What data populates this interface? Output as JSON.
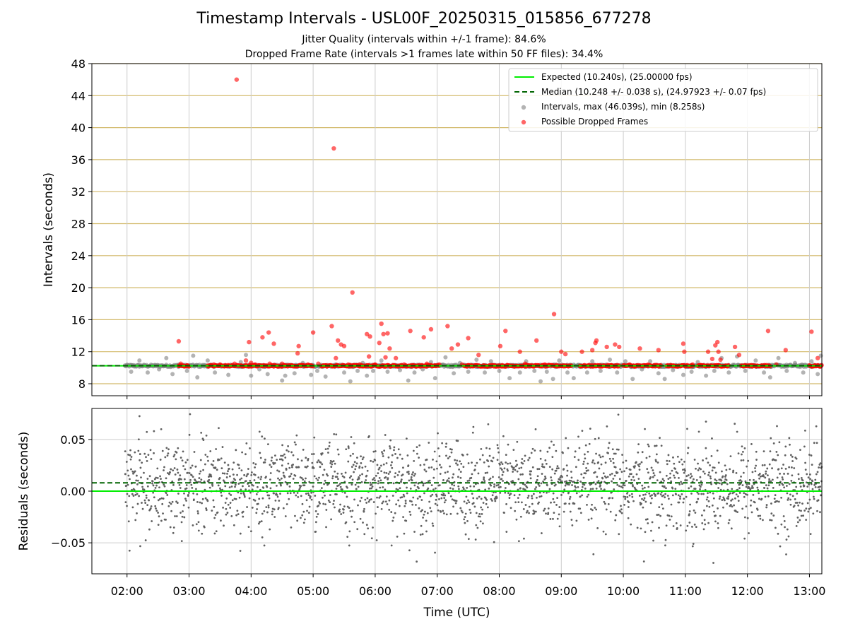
{
  "title": "Timestamp Intervals - USL00F_20250315_015856_677278",
  "subtitle1": "Jitter Quality (intervals within +/-1 frame): 84.6%",
  "subtitle2": "Dropped Frame Rate (intervals >1 frames late within 50 FF files): 34.4%",
  "chart_data": [
    {
      "type": "scatter",
      "panel": "top",
      "ylabel": "Intervals (seconds)",
      "ylim": [
        6.5,
        48
      ],
      "xlim": [
        "01:26",
        "13:12"
      ],
      "yticks": [
        8,
        12,
        16,
        20,
        24,
        28,
        32,
        36,
        40,
        44,
        48
      ],
      "grid": true,
      "legend_position": "upper right",
      "legend": [
        {
          "label": "Expected (10.240s), (25.00000 fps)",
          "kind": "solid-line",
          "color": "#00ee00"
        },
        {
          "label": "Median (10.248 +/- 0.038 s), (24.97923 +/- 0.07 fps)",
          "kind": "dashed-line",
          "color": "#006400"
        },
        {
          "label": "Intervals, max (46.039s), min (8.258s)",
          "kind": "dot",
          "color": "#808080"
        },
        {
          "label": "Possible Dropped Frames",
          "kind": "dot",
          "color": "#ff0000"
        }
      ],
      "expected": 10.24,
      "median": 10.248,
      "series": [
        {
          "name": "Intervals, max (46.039s), min (8.258s)",
          "color": "#808080",
          "points": [
            [
              "02:04",
              9.5
            ],
            [
              "02:12",
              10.9
            ],
            [
              "02:20",
              9.4
            ],
            [
              "02:31",
              9.8
            ],
            [
              "02:38",
              11.2
            ],
            [
              "02:44",
              9.2
            ],
            [
              "02:50",
              10.4
            ],
            [
              "02:58",
              9.6
            ],
            [
              "03:04",
              11.5
            ],
            [
              "03:08",
              8.8
            ],
            [
              "03:18",
              10.9
            ],
            [
              "03:25",
              9.4
            ],
            [
              "03:38",
              9.1
            ],
            [
              "03:50",
              10.7
            ],
            [
              "03:55",
              11.6
            ],
            [
              "04:00",
              9.0
            ],
            [
              "04:08",
              9.8
            ],
            [
              "04:16",
              9.2
            ],
            [
              "04:24",
              10.3
            ],
            [
              "04:30",
              8.4
            ],
            [
              "04:33",
              9.0
            ],
            [
              "04:42",
              9.3
            ],
            [
              "04:50",
              10.6
            ],
            [
              "04:58",
              9.1
            ],
            [
              "05:04",
              9.6
            ],
            [
              "05:12",
              8.9
            ],
            [
              "05:22",
              10.4
            ],
            [
              "05:30",
              9.4
            ],
            [
              "05:36",
              8.3
            ],
            [
              "05:43",
              9.6
            ],
            [
              "05:48",
              10.6
            ],
            [
              "05:52",
              9.0
            ],
            [
              "05:58",
              9.6
            ],
            [
              "06:06",
              10.9
            ],
            [
              "06:12",
              9.5
            ],
            [
              "06:18",
              10.2
            ],
            [
              "06:24",
              9.7
            ],
            [
              "06:32",
              8.4
            ],
            [
              "06:38",
              9.4
            ],
            [
              "06:46",
              9.8
            ],
            [
              "06:54",
              10.7
            ],
            [
              "06:58",
              8.7
            ],
            [
              "07:08",
              11.3
            ],
            [
              "07:16",
              9.3
            ],
            [
              "07:22",
              10.6
            ],
            [
              "07:30",
              9.5
            ],
            [
              "07:38",
              11.0
            ],
            [
              "07:46",
              9.4
            ],
            [
              "07:52",
              10.8
            ],
            [
              "08:00",
              9.6
            ],
            [
              "08:10",
              8.7
            ],
            [
              "08:20",
              9.4
            ],
            [
              "08:26",
              10.8
            ],
            [
              "08:34",
              9.6
            ],
            [
              "08:40",
              8.3
            ],
            [
              "08:46",
              9.5
            ],
            [
              "08:52",
              8.6
            ],
            [
              "08:58",
              10.9
            ],
            [
              "09:06",
              9.4
            ],
            [
              "09:12",
              8.7
            ],
            [
              "09:18",
              10.1
            ],
            [
              "09:25",
              9.4
            ],
            [
              "09:30",
              10.8
            ],
            [
              "09:38",
              9.6
            ],
            [
              "09:47",
              11.0
            ],
            [
              "09:54",
              9.4
            ],
            [
              "10:02",
              10.8
            ],
            [
              "10:09",
              8.6
            ],
            [
              "10:18",
              9.8
            ],
            [
              "10:26",
              10.8
            ],
            [
              "10:34",
              9.3
            ],
            [
              "10:40",
              8.6
            ],
            [
              "10:48",
              9.7
            ],
            [
              "10:58",
              9.1
            ],
            [
              "11:06",
              9.5
            ],
            [
              "11:12",
              10.7
            ],
            [
              "11:20",
              9.0
            ],
            [
              "11:28",
              9.6
            ],
            [
              "11:35",
              11.2
            ],
            [
              "11:42",
              9.4
            ],
            [
              "11:50",
              11.4
            ],
            [
              "11:58",
              9.6
            ],
            [
              "12:08",
              10.9
            ],
            [
              "12:16",
              9.4
            ],
            [
              "12:22",
              8.8
            ],
            [
              "12:30",
              11.2
            ],
            [
              "12:38",
              9.6
            ],
            [
              "12:46",
              10.6
            ],
            [
              "12:54",
              9.4
            ],
            [
              "13:02",
              10.8
            ],
            [
              "13:08",
              9.2
            ],
            [
              "13:11",
              11.5
            ]
          ]
        },
        {
          "name": "Possible Dropped Frames",
          "color": "#ff0000",
          "points": [
            [
              "02:50",
              13.3
            ],
            [
              "02:52",
              10.5
            ],
            [
              "03:24",
              10.4
            ],
            [
              "03:30",
              10.4
            ],
            [
              "03:44",
              10.5
            ],
            [
              "03:46",
              46.0
            ],
            [
              "03:55",
              10.9
            ],
            [
              "03:58",
              13.2
            ],
            [
              "04:00",
              10.6
            ],
            [
              "04:04",
              10.4
            ],
            [
              "04:11",
              13.8
            ],
            [
              "04:17",
              14.4
            ],
            [
              "04:18",
              10.5
            ],
            [
              "04:22",
              13.0
            ],
            [
              "04:30",
              10.5
            ],
            [
              "04:45",
              11.8
            ],
            [
              "04:46",
              12.7
            ],
            [
              "04:55",
              10.4
            ],
            [
              "05:00",
              14.4
            ],
            [
              "05:05",
              10.5
            ],
            [
              "05:18",
              15.2
            ],
            [
              "05:20",
              37.4
            ],
            [
              "05:22",
              11.2
            ],
            [
              "05:24",
              13.4
            ],
            [
              "05:27",
              12.9
            ],
            [
              "05:30",
              12.7
            ],
            [
              "05:34",
              10.4
            ],
            [
              "05:38",
              19.4
            ],
            [
              "05:45",
              10.4
            ],
            [
              "05:52",
              14.2
            ],
            [
              "05:54",
              11.4
            ],
            [
              "05:55",
              13.9
            ],
            [
              "06:00",
              10.4
            ],
            [
              "06:04",
              13.1
            ],
            [
              "06:06",
              15.5
            ],
            [
              "06:08",
              14.2
            ],
            [
              "06:10",
              11.3
            ],
            [
              "06:12",
              14.3
            ],
            [
              "06:14",
              12.4
            ],
            [
              "06:20",
              11.2
            ],
            [
              "06:28",
              10.4
            ],
            [
              "06:34",
              14.6
            ],
            [
              "06:47",
              13.8
            ],
            [
              "06:50",
              10.5
            ],
            [
              "06:54",
              14.8
            ],
            [
              "07:02",
              10.4
            ],
            [
              "07:10",
              15.2
            ],
            [
              "07:14",
              12.4
            ],
            [
              "07:20",
              12.9
            ],
            [
              "07:24",
              10.4
            ],
            [
              "07:30",
              13.7
            ],
            [
              "07:40",
              11.6
            ],
            [
              "08:01",
              12.7
            ],
            [
              "08:06",
              14.6
            ],
            [
              "08:20",
              12.0
            ],
            [
              "08:25",
              10.5
            ],
            [
              "08:36",
              13.4
            ],
            [
              "08:44",
              10.4
            ],
            [
              "08:53",
              16.7
            ],
            [
              "09:00",
              12.0
            ],
            [
              "09:04",
              11.7
            ],
            [
              "09:20",
              12.0
            ],
            [
              "09:30",
              12.2
            ],
            [
              "09:33",
              13.1
            ],
            [
              "09:34",
              13.4
            ],
            [
              "09:44",
              12.6
            ],
            [
              "09:48",
              10.3
            ],
            [
              "09:52",
              12.9
            ],
            [
              "09:56",
              12.6
            ],
            [
              "10:06",
              10.4
            ],
            [
              "10:16",
              12.4
            ],
            [
              "10:24",
              10.4
            ],
            [
              "10:34",
              12.2
            ],
            [
              "10:58",
              13.0
            ],
            [
              "10:59",
              12.0
            ],
            [
              "11:07",
              10.4
            ],
            [
              "11:22",
              12.0
            ],
            [
              "11:26",
              11.1
            ],
            [
              "11:29",
              12.8
            ],
            [
              "11:31",
              13.2
            ],
            [
              "11:32",
              12.0
            ],
            [
              "11:34",
              11.0
            ],
            [
              "11:48",
              12.6
            ],
            [
              "11:52",
              11.6
            ],
            [
              "12:20",
              14.6
            ],
            [
              "12:28",
              10.4
            ],
            [
              "12:37",
              12.2
            ],
            [
              "13:02",
              14.5
            ],
            [
              "13:08",
              11.2
            ]
          ]
        }
      ],
      "dense_red_band": {
        "value": 10.24,
        "ranges": [
          [
            "02:50",
            "03:00"
          ],
          [
            "03:18",
            "05:00"
          ],
          [
            "05:08",
            "07:02"
          ],
          [
            "07:26",
            "09:10"
          ],
          [
            "09:18",
            "09:56"
          ],
          [
            "10:00",
            "10:36"
          ],
          [
            "10:42",
            "11:08"
          ],
          [
            "11:12",
            "11:42"
          ],
          [
            "11:54",
            "12:22"
          ],
          [
            "13:00",
            "13:12"
          ]
        ]
      },
      "dense_grey_band": {
        "value": 10.24,
        "range": [
          "01:58",
          "13:12"
        ]
      }
    },
    {
      "type": "scatter",
      "panel": "bottom",
      "ylabel": "Residuals (seconds)",
      "xlabel": "Time (UTC)",
      "ylim": [
        -0.08,
        0.08
      ],
      "yticks": [
        -0.05,
        0.0,
        0.05
      ],
      "ytick_labels": [
        "−0.05",
        "0.00",
        "0.05"
      ],
      "xticks": [
        "02:00",
        "03:00",
        "04:00",
        "05:00",
        "06:00",
        "07:00",
        "08:00",
        "09:00",
        "10:00",
        "11:00",
        "12:00",
        "13:00"
      ],
      "xlim": [
        "01:26",
        "13:12"
      ],
      "grid": true,
      "expected": 0.0,
      "median": 0.008,
      "residual_spread": {
        "range": [
          "01:58",
          "13:12"
        ],
        "center": 0.005,
        "typical_sd": 0.022,
        "min": -0.08,
        "max": 0.078,
        "color": "#606060"
      }
    }
  ]
}
